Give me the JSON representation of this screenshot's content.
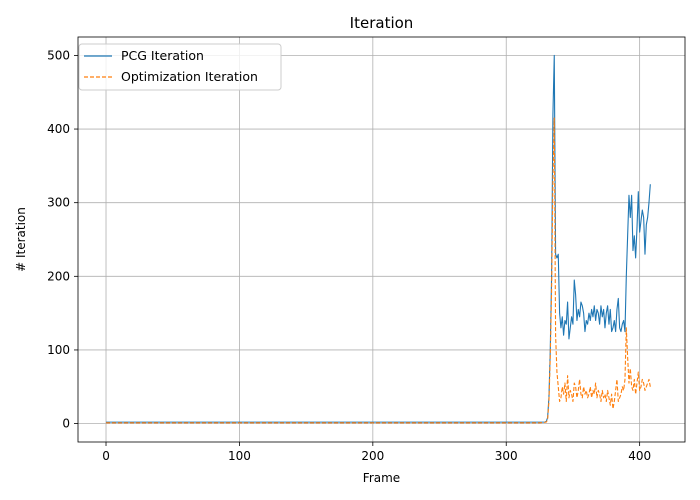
{
  "chart_data": {
    "type": "line",
    "title": "Iteration",
    "xlabel": "Frame",
    "ylabel": "# Iteration",
    "xlim": [
      -21,
      434
    ],
    "ylim": [
      -25,
      525
    ],
    "xticks": [
      0,
      100,
      200,
      300,
      400
    ],
    "yticks": [
      0,
      100,
      200,
      300,
      400,
      500
    ],
    "grid": true,
    "legend_position": "top-left",
    "series": [
      {
        "name": "PCG Iteration",
        "color": "#1f77b4",
        "style": "solid",
        "points": [
          [
            0,
            2
          ],
          [
            50,
            2
          ],
          [
            100,
            2
          ],
          [
            150,
            2
          ],
          [
            200,
            2
          ],
          [
            250,
            2
          ],
          [
            300,
            2
          ],
          [
            325,
            2
          ],
          [
            329,
            2
          ],
          [
            330,
            3
          ],
          [
            331,
            8
          ],
          [
            332,
            35
          ],
          [
            333,
            100
          ],
          [
            334,
            200
          ],
          [
            335,
            420
          ],
          [
            336,
            500
          ],
          [
            337,
            230
          ],
          [
            338,
            225
          ],
          [
            339,
            230
          ],
          [
            340,
            150
          ],
          [
            341,
            130
          ],
          [
            342,
            145
          ],
          [
            343,
            120
          ],
          [
            344,
            140
          ],
          [
            345,
            135
          ],
          [
            346,
            165
          ],
          [
            347,
            115
          ],
          [
            348,
            130
          ],
          [
            349,
            145
          ],
          [
            350,
            135
          ],
          [
            351,
            195
          ],
          [
            352,
            175
          ],
          [
            353,
            140
          ],
          [
            354,
            155
          ],
          [
            355,
            145
          ],
          [
            356,
            165
          ],
          [
            357,
            160
          ],
          [
            358,
            150
          ],
          [
            359,
            125
          ],
          [
            360,
            140
          ],
          [
            361,
            135
          ],
          [
            362,
            150
          ],
          [
            363,
            140
          ],
          [
            364,
            155
          ],
          [
            365,
            145
          ],
          [
            366,
            160
          ],
          [
            367,
            140
          ],
          [
            368,
            155
          ],
          [
            369,
            150
          ],
          [
            370,
            135
          ],
          [
            371,
            160
          ],
          [
            372,
            145
          ],
          [
            373,
            155
          ],
          [
            374,
            130
          ],
          [
            375,
            150
          ],
          [
            376,
            160
          ],
          [
            377,
            135
          ],
          [
            378,
            155
          ],
          [
            379,
            125
          ],
          [
            380,
            130
          ],
          [
            381,
            140
          ],
          [
            382,
            125
          ],
          [
            383,
            155
          ],
          [
            384,
            170
          ],
          [
            385,
            130
          ],
          [
            386,
            125
          ],
          [
            387,
            135
          ],
          [
            388,
            140
          ],
          [
            389,
            125
          ],
          [
            390,
            200
          ],
          [
            391,
            255
          ],
          [
            392,
            310
          ],
          [
            393,
            280
          ],
          [
            394,
            310
          ],
          [
            395,
            235
          ],
          [
            396,
            255
          ],
          [
            397,
            225
          ],
          [
            398,
            265
          ],
          [
            399,
            315
          ],
          [
            400,
            260
          ],
          [
            401,
            275
          ],
          [
            402,
            290
          ],
          [
            403,
            280
          ],
          [
            404,
            230
          ],
          [
            405,
            270
          ],
          [
            406,
            280
          ],
          [
            407,
            300
          ],
          [
            408,
            325
          ]
        ]
      },
      {
        "name": "Optimization Iteration",
        "color": "#ff7f0e",
        "style": "dashed",
        "points": [
          [
            0,
            1
          ],
          [
            50,
            1
          ],
          [
            100,
            1
          ],
          [
            150,
            1
          ],
          [
            200,
            1
          ],
          [
            250,
            1
          ],
          [
            300,
            1
          ],
          [
            325,
            1
          ],
          [
            330,
            2
          ],
          [
            331,
            5
          ],
          [
            332,
            30
          ],
          [
            333,
            90
          ],
          [
            334,
            180
          ],
          [
            335,
            330
          ],
          [
            336,
            415
          ],
          [
            337,
            120
          ],
          [
            338,
            70
          ],
          [
            339,
            50
          ],
          [
            340,
            30
          ],
          [
            341,
            35
          ],
          [
            342,
            50
          ],
          [
            343,
            40
          ],
          [
            344,
            55
          ],
          [
            345,
            30
          ],
          [
            346,
            65
          ],
          [
            347,
            35
          ],
          [
            348,
            45
          ],
          [
            349,
            40
          ],
          [
            350,
            30
          ],
          [
            351,
            55
          ],
          [
            352,
            50
          ],
          [
            353,
            35
          ],
          [
            354,
            45
          ],
          [
            355,
            60
          ],
          [
            356,
            40
          ],
          [
            357,
            35
          ],
          [
            358,
            50
          ],
          [
            359,
            40
          ],
          [
            360,
            45
          ],
          [
            361,
            35
          ],
          [
            362,
            40
          ],
          [
            363,
            50
          ],
          [
            364,
            35
          ],
          [
            365,
            45
          ],
          [
            366,
            40
          ],
          [
            367,
            55
          ],
          [
            368,
            35
          ],
          [
            369,
            45
          ],
          [
            370,
            40
          ],
          [
            371,
            30
          ],
          [
            372,
            45
          ],
          [
            373,
            35
          ],
          [
            374,
            40
          ],
          [
            375,
            30
          ],
          [
            376,
            45
          ],
          [
            377,
            35
          ],
          [
            378,
            25
          ],
          [
            379,
            40
          ],
          [
            380,
            20
          ],
          [
            381,
            30
          ],
          [
            382,
            45
          ],
          [
            383,
            60
          ],
          [
            384,
            30
          ],
          [
            385,
            35
          ],
          [
            386,
            40
          ],
          [
            387,
            50
          ],
          [
            388,
            45
          ],
          [
            389,
            60
          ],
          [
            390,
            130
          ],
          [
            391,
            90
          ],
          [
            392,
            55
          ],
          [
            393,
            75
          ],
          [
            394,
            50
          ],
          [
            395,
            45
          ],
          [
            396,
            60
          ],
          [
            397,
            40
          ],
          [
            398,
            55
          ],
          [
            399,
            70
          ],
          [
            400,
            45
          ],
          [
            401,
            50
          ],
          [
            402,
            60
          ],
          [
            403,
            55
          ],
          [
            404,
            45
          ],
          [
            405,
            50
          ],
          [
            406,
            55
          ],
          [
            407,
            60
          ],
          [
            408,
            50
          ]
        ]
      }
    ]
  }
}
